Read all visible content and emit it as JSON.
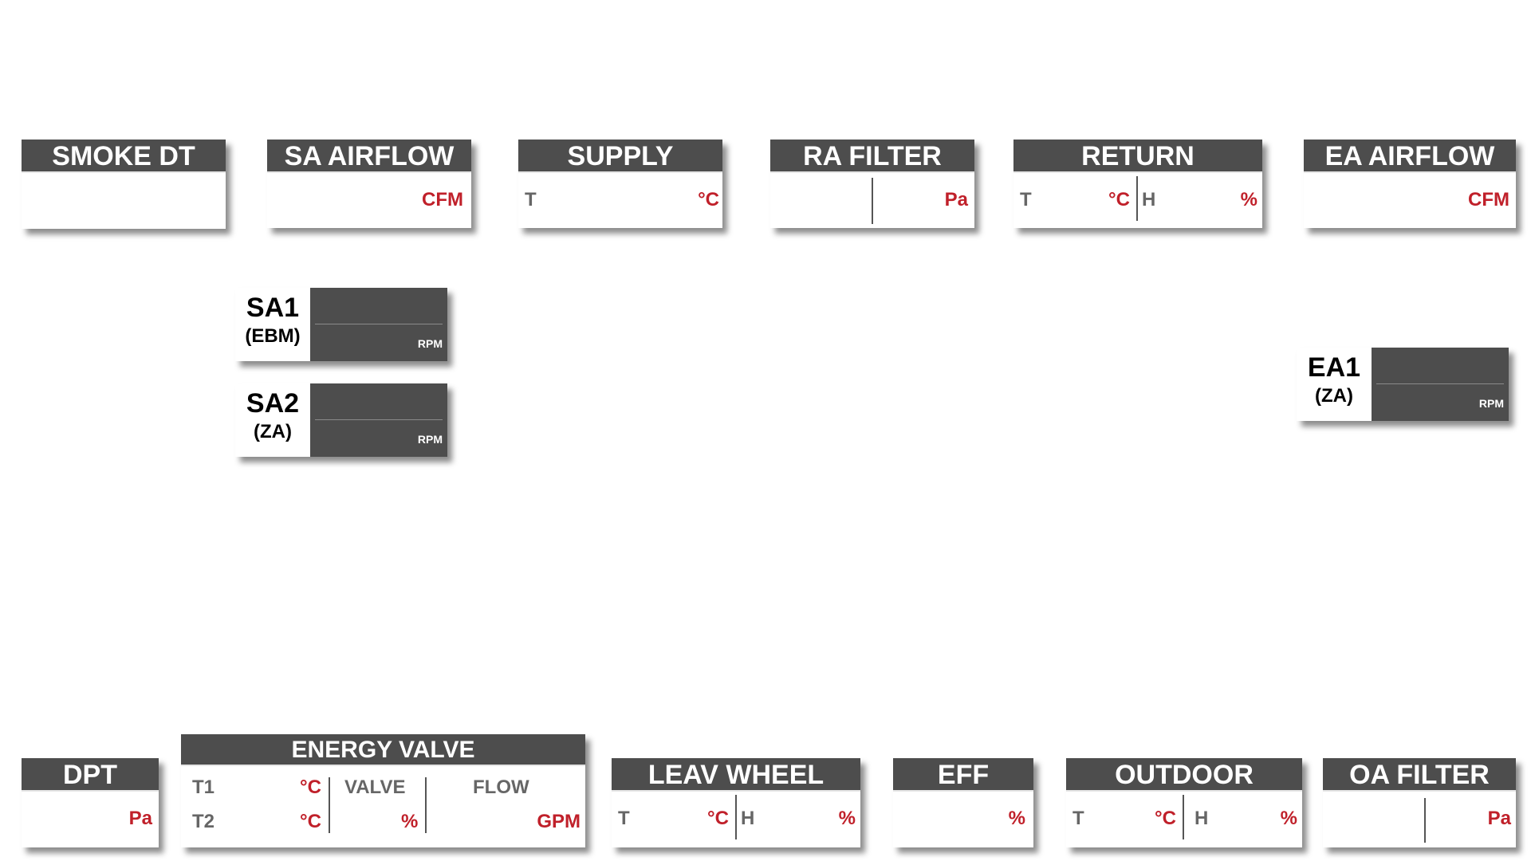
{
  "panels": {
    "smoke_dt": {
      "title": "SMOKE DT"
    },
    "sa_airflow": {
      "title": "SA AIRFLOW",
      "unit": "CFM"
    },
    "supply": {
      "title": "SUPPLY",
      "label_t": "T",
      "unit_t": "°C"
    },
    "ra_filter": {
      "title": "RA FILTER",
      "unit": "Pa"
    },
    "return": {
      "title": "RETURN",
      "label_t": "T",
      "unit_t": "°C",
      "label_h": "H",
      "unit_h": "%"
    },
    "ea_airflow": {
      "title": "EA AIRFLOW",
      "unit": "CFM"
    },
    "dpt": {
      "title": "DPT",
      "unit": "Pa"
    },
    "energy_valve": {
      "title": "ENERGY VALVE",
      "label_t1": "T1",
      "unit_t1": "°C",
      "label_t2": "T2",
      "unit_t2": "°C",
      "label_valve": "VALVE",
      "unit_valve": "%",
      "label_flow": "FLOW",
      "unit_flow": "GPM"
    },
    "leav_wheel": {
      "title": "LEAV WHEEL",
      "label_t": "T",
      "unit_t": "°C",
      "label_h": "H",
      "unit_h": "%"
    },
    "eff": {
      "title": "EFF",
      "unit": "%"
    },
    "outdoor": {
      "title": "OUTDOOR",
      "label_t": "T",
      "unit_t": "°C",
      "label_h": "H",
      "unit_h": "%"
    },
    "oa_filter": {
      "title": "OA FILTER",
      "unit": "Pa"
    }
  },
  "fans": {
    "sa1": {
      "name": "SA1",
      "model": "(EBM)",
      "unit": "RPM"
    },
    "sa2": {
      "name": "SA2",
      "model": "(ZA)",
      "unit": "RPM"
    },
    "ea1": {
      "name": "EA1",
      "model": "(ZA)",
      "unit": "RPM"
    }
  },
  "colors": {
    "header_bg": "#4d4d4d",
    "unit_red": "#c0202a",
    "label_gray": "#666666"
  }
}
